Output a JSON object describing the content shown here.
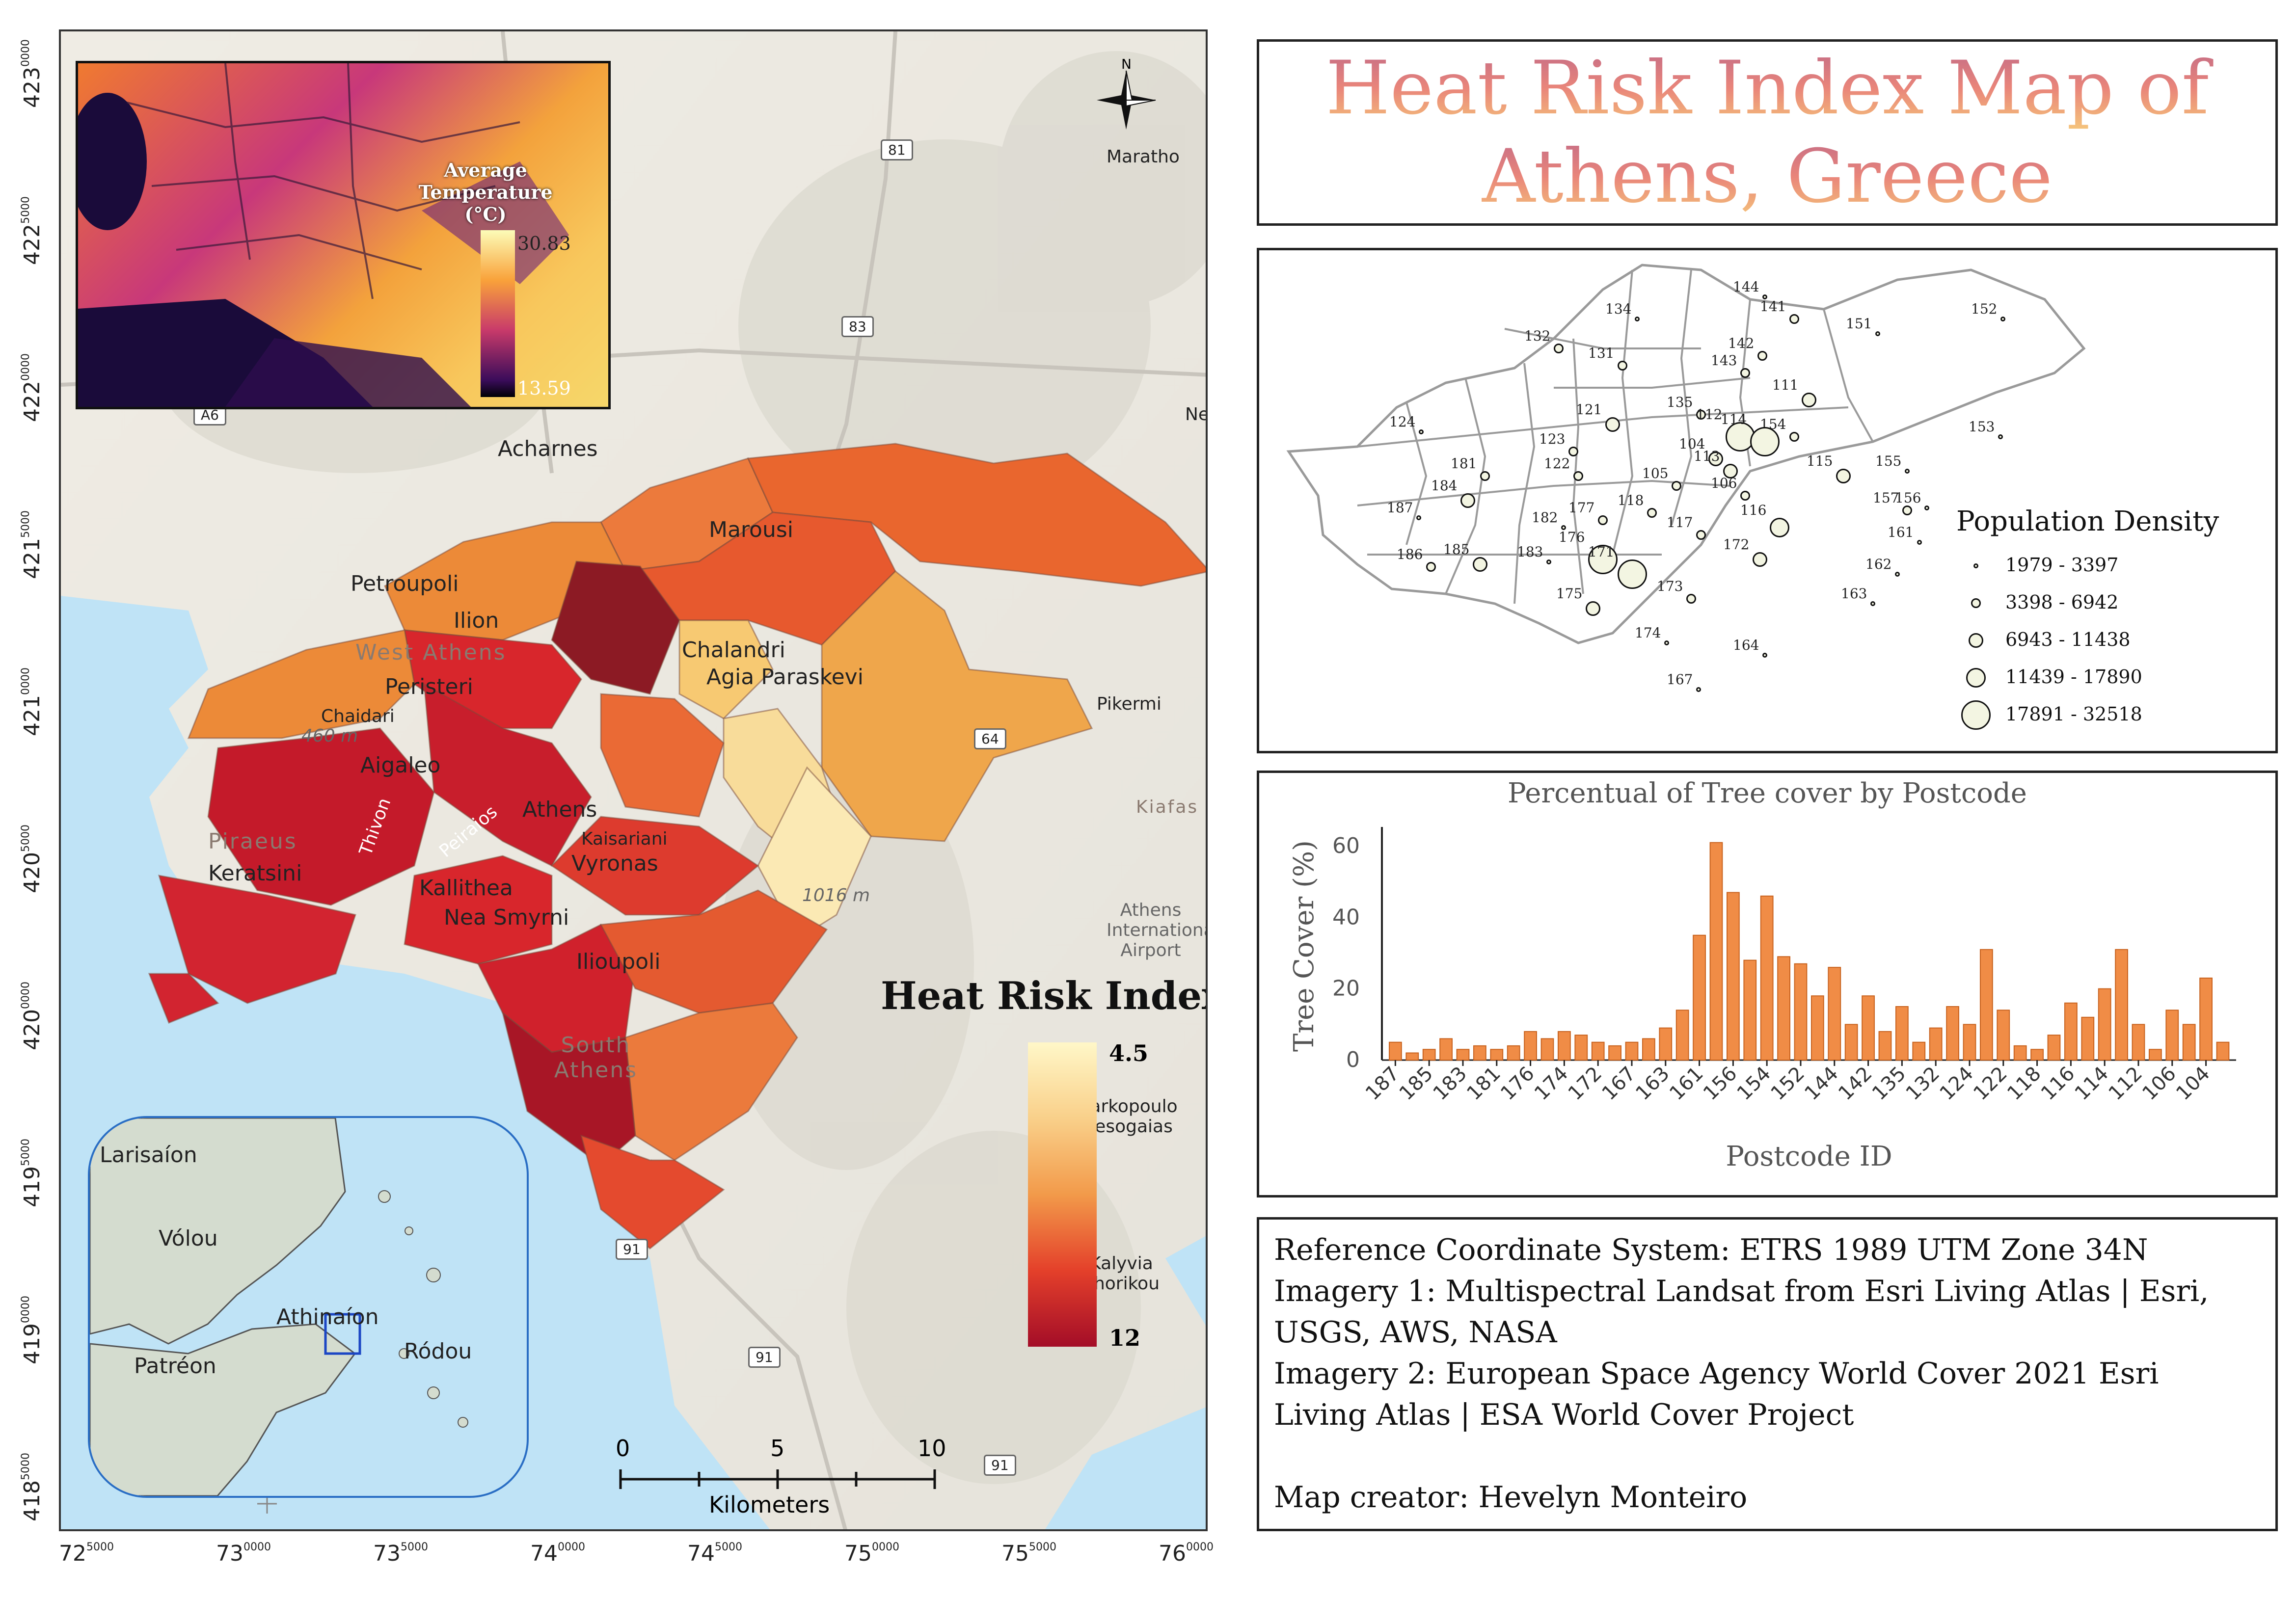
{
  "title": {
    "line1": "Heat Risk Index Map of",
    "line2": "Athens, Greece"
  },
  "map": {
    "x_ticks": [
      {
        "main": "72",
        "sup": "5000"
      },
      {
        "main": "73",
        "sup": "0000"
      },
      {
        "main": "73",
        "sup": "5000"
      },
      {
        "main": "74",
        "sup": "0000"
      },
      {
        "main": "74",
        "sup": "5000"
      },
      {
        "main": "75",
        "sup": "0000"
      },
      {
        "main": "75",
        "sup": "5000"
      },
      {
        "main": "76",
        "sup": "0000"
      }
    ],
    "y_ticks": [
      {
        "main": "423",
        "sup": "0000"
      },
      {
        "main": "422",
        "sup": "5000"
      },
      {
        "main": "422",
        "sup": "0000"
      },
      {
        "main": "421",
        "sup": "5000"
      },
      {
        "main": "421",
        "sup": "0000"
      },
      {
        "main": "420",
        "sup": "5000"
      },
      {
        "main": "420",
        "sup": "0000"
      },
      {
        "main": "419",
        "sup": "5000"
      },
      {
        "main": "419",
        "sup": "0000"
      },
      {
        "main": "418",
        "sup": "5000"
      }
    ],
    "places": {
      "acharnes": "Acharnes",
      "marousi": "Marousi",
      "petroupoli": "Petroupoli",
      "ilion": "Ilion",
      "west_athens": "West Athens",
      "peristeri": "Peristeri",
      "chalandri": "Chalandri",
      "agia_paraskevi": "Agia Paraskevi",
      "chaidari": "Chaidari",
      "aigaleo": "Aigaleo",
      "athens": "Athens",
      "kaisariani": "Kaisariani",
      "vyronas": "Vyronas",
      "piraeus": "Piraeus",
      "keratsini": "Keratsini",
      "kallithea": "Kallithea",
      "nea_smyrni": "Nea Smyrni",
      "ilioupoli": "Ilioupoli",
      "south_athens": "South Athens",
      "pikermi": "Pikermi",
      "kiafas": "Kiafas",
      "airport": "Athens International Airport",
      "markopoulo": "Markopoulo Mesogaias",
      "kalyvia": "Kalyvia Thorikou",
      "maratho": "Maratho",
      "ne": "Ne",
      "elev_460": "460 m",
      "elev_1016": "1016 m",
      "thivon": "Thivon",
      "peiraios": "Peiraios"
    },
    "roads": [
      "A6",
      "81",
      "83",
      "64",
      "91",
      "91",
      "91"
    ],
    "north": "N",
    "heat_legend": {
      "title": "Heat Risk Index",
      "max": "4.5",
      "min": "12"
    },
    "scale_bar": {
      "labels": [
        "0",
        "5",
        "10"
      ],
      "unit": "Kilometers"
    },
    "temp_inset": {
      "title_line1": "Average",
      "title_line2": "Temperature (°C)",
      "max": "30.83",
      "min": "13.59"
    },
    "locator": {
      "places": [
        "Larisaíon",
        "Vólou",
        "Athinaíon",
        "Patréon",
        "Ródou"
      ]
    }
  },
  "population_map": {
    "legend_title": "Population Density",
    "classes": [
      "1979 - 3397",
      "3398 - 6942",
      "6943 - 11438",
      "11439 - 17890",
      "17891 - 32518"
    ],
    "postcodes": [
      {
        "id": "134",
        "c": 0
      },
      {
        "id": "144",
        "c": 0
      },
      {
        "id": "141",
        "c": 1
      },
      {
        "id": "151",
        "c": 0
      },
      {
        "id": "152",
        "c": 0
      },
      {
        "id": "132",
        "c": 1
      },
      {
        "id": "131",
        "c": 1
      },
      {
        "id": "142",
        "c": 1
      },
      {
        "id": "143",
        "c": 1
      },
      {
        "id": "111",
        "c": 2
      },
      {
        "id": "124",
        "c": 0
      },
      {
        "id": "121",
        "c": 2
      },
      {
        "id": "135",
        "c": 1
      },
      {
        "id": "112",
        "c": 4
      },
      {
        "id": "154",
        "c": 1
      },
      {
        "id": "153",
        "c": 0
      },
      {
        "id": "123",
        "c": 1
      },
      {
        "id": "104",
        "c": 2
      },
      {
        "id": "114",
        "c": 4
      },
      {
        "id": "181",
        "c": 1
      },
      {
        "id": "113",
        "c": 2
      },
      {
        "id": "155",
        "c": 0
      },
      {
        "id": "122",
        "c": 1
      },
      {
        "id": "115",
        "c": 2
      },
      {
        "id": "187",
        "c": 0
      },
      {
        "id": "105",
        "c": 1
      },
      {
        "id": "156",
        "c": 0
      },
      {
        "id": "106",
        "c": 1
      },
      {
        "id": "184",
        "c": 2
      },
      {
        "id": "182",
        "c": 0
      },
      {
        "id": "157",
        "c": 1
      },
      {
        "id": "177",
        "c": 1
      },
      {
        "id": "118",
        "c": 1
      },
      {
        "id": "116",
        "c": 3
      },
      {
        "id": "161",
        "c": 0
      },
      {
        "id": "186",
        "c": 1
      },
      {
        "id": "185",
        "c": 2
      },
      {
        "id": "117",
        "c": 1
      },
      {
        "id": "172",
        "c": 2
      },
      {
        "id": "183",
        "c": 0
      },
      {
        "id": "176",
        "c": 4
      },
      {
        "id": "162",
        "c": 0
      },
      {
        "id": "171",
        "c": 4
      },
      {
        "id": "175",
        "c": 2
      },
      {
        "id": "163",
        "c": 0
      },
      {
        "id": "173",
        "c": 1
      },
      {
        "id": "174",
        "c": 0
      },
      {
        "id": "164",
        "c": 0
      },
      {
        "id": "167",
        "c": 0
      }
    ]
  },
  "chart_data": {
    "type": "bar",
    "title": "Percentual of Tree cover by Postcode",
    "xlabel": "Postcode ID",
    "ylabel": "Tree Cover (%)",
    "ylim": [
      0,
      64
    ],
    "yticks": [
      0,
      20,
      40,
      60
    ],
    "tick_labels": [
      "187",
      "185",
      "183",
      "181",
      "176",
      "174",
      "172",
      "167",
      "163",
      "161",
      "156",
      "154",
      "152",
      "144",
      "142",
      "135",
      "132",
      "124",
      "122",
      "118",
      "116",
      "114",
      "112",
      "106",
      "104"
    ],
    "values": [
      5,
      2,
      3,
      6,
      3,
      4,
      3,
      4,
      8,
      6,
      8,
      7,
      5,
      4,
      5,
      6,
      9,
      14,
      35,
      61,
      47,
      28,
      46,
      29,
      27,
      18,
      26,
      10,
      18,
      8,
      15,
      5,
      9,
      15,
      10,
      31,
      14,
      4,
      3,
      7,
      16,
      12,
      20,
      31,
      10,
      3,
      14,
      10,
      23,
      5
    ],
    "color": "#f08c46",
    "grid": false
  },
  "info": {
    "lines": [
      "Reference Coordinate System: ETRS 1989 UTM Zone 34N",
      "Imagery 1: Multispectral Landsat from Esri Living Atlas | Esri,",
      "USGS, AWS, NASA",
      "Imagery 2: European Space Agency World Cover 2021 Esri",
      "Living Atlas | ESA World Cover Project",
      "",
      "Map creator: Hevelyn Monteiro"
    ]
  }
}
